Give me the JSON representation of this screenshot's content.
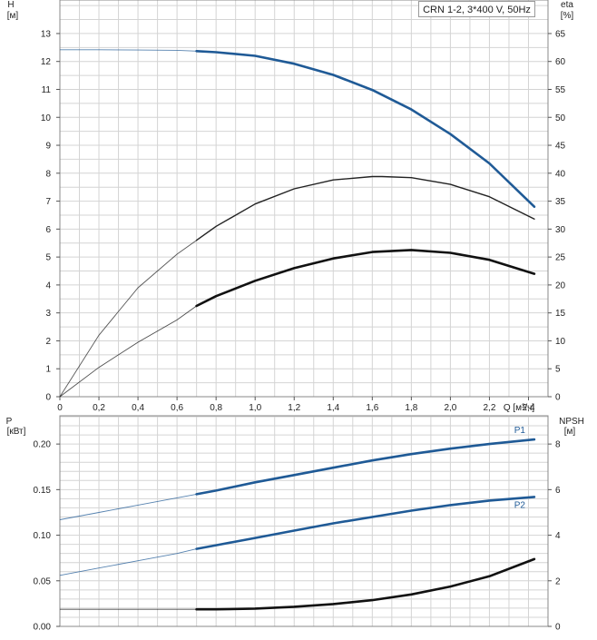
{
  "chart_data": [
    {
      "type": "line",
      "legend": "CRN 1-2, 3*400 V, 50Hz",
      "x_axis": {
        "label": "Q [м³/ч]",
        "range": [
          0,
          2.5
        ],
        "ticks": [
          "0",
          "0,2",
          "0,4",
          "0,6",
          "0,8",
          "1,0",
          "1,2",
          "1,4",
          "1,6",
          "1,8",
          "2,0",
          "2,2",
          "2,4"
        ]
      },
      "y_left": {
        "label_line1": "H",
        "label_line2": "[м]",
        "range": [
          0,
          14.2
        ],
        "ticks": [
          "0",
          "1",
          "2",
          "3",
          "4",
          "5",
          "6",
          "7",
          "8",
          "9",
          "10",
          "11",
          "12",
          "13"
        ]
      },
      "y_right": {
        "label_line1": "eta",
        "label_line2": "[%]",
        "range": [
          0,
          71
        ],
        "ticks": [
          "0",
          "5",
          "10",
          "15",
          "20",
          "25",
          "30",
          "35",
          "40",
          "45",
          "50",
          "55",
          "60",
          "65"
        ]
      },
      "grid": true,
      "series": [
        {
          "axis": "left",
          "color": "#1f5a96",
          "x": [
            0,
            0.2,
            0.4,
            0.6,
            0.7,
            0.8,
            1.0,
            1.2,
            1.4,
            1.6,
            1.8,
            2.0,
            2.2,
            2.43
          ],
          "y": [
            12.42,
            12.42,
            12.41,
            12.4,
            12.37,
            12.33,
            12.2,
            11.92,
            11.52,
            10.98,
            10.28,
            9.4,
            8.35,
            6.8
          ],
          "operating_from": 0.7
        },
        {
          "axis": "right",
          "color": "#222222",
          "x": [
            0,
            0.2,
            0.4,
            0.6,
            0.7,
            0.8,
            1.0,
            1.2,
            1.4,
            1.6,
            1.65,
            1.8,
            2.0,
            2.2,
            2.43
          ],
          "y": [
            0,
            11,
            19.5,
            25.5,
            28,
            30.5,
            34.5,
            37.2,
            38.8,
            39.4,
            39.4,
            39.2,
            38,
            35.8,
            31.8
          ],
          "operating_from": 0.7
        },
        {
          "axis": "left",
          "color": "#111111",
          "x": [
            0,
            0.2,
            0.4,
            0.6,
            0.7,
            0.8,
            1.0,
            1.2,
            1.4,
            1.6,
            1.8,
            2.0,
            2.2,
            2.43
          ],
          "y": [
            0,
            1.05,
            1.95,
            2.75,
            3.25,
            3.6,
            4.15,
            4.6,
            4.95,
            5.18,
            5.25,
            5.15,
            4.9,
            4.4
          ],
          "operating_from": 0.7
        }
      ]
    },
    {
      "type": "line",
      "x_axis": {
        "range": [
          0,
          2.5
        ]
      },
      "y_left": {
        "label_line1": "P",
        "label_line2": "[кВт]",
        "range": [
          0,
          0.231
        ],
        "ticks": [
          "0.00",
          "0.05",
          "0.10",
          "0.15",
          "0.20"
        ]
      },
      "y_right": {
        "label_line1": "NPSH",
        "label_line2": "[м]",
        "range": [
          0,
          9.24
        ],
        "ticks": [
          "0",
          "2",
          "4",
          "6",
          "8"
        ]
      },
      "grid": true,
      "series": [
        {
          "name": "P1",
          "axis": "left",
          "color": "#1f5a96",
          "x": [
            0,
            0.2,
            0.4,
            0.6,
            0.7,
            0.8,
            1.0,
            1.2,
            1.4,
            1.6,
            1.8,
            2.0,
            2.2,
            2.43
          ],
          "y": [
            0.117,
            0.125,
            0.133,
            0.141,
            0.145,
            0.149,
            0.158,
            0.166,
            0.174,
            0.182,
            0.189,
            0.195,
            0.2,
            0.205
          ],
          "operating_from": 0.7
        },
        {
          "name": "P2",
          "axis": "left",
          "color": "#1f5a96",
          "x": [
            0,
            0.2,
            0.4,
            0.6,
            0.7,
            0.8,
            1.0,
            1.2,
            1.4,
            1.6,
            1.8,
            2.0,
            2.2,
            2.43
          ],
          "y": [
            0.056,
            0.064,
            0.072,
            0.08,
            0.085,
            0.089,
            0.097,
            0.105,
            0.113,
            0.12,
            0.127,
            0.133,
            0.138,
            0.142
          ],
          "operating_from": 0.7
        },
        {
          "axis": "right",
          "color": "#111111",
          "x": [
            0,
            0.2,
            0.4,
            0.6,
            0.7,
            0.8,
            1.0,
            1.2,
            1.4,
            1.6,
            1.8,
            2.0,
            2.2,
            2.43
          ],
          "y": [
            0.75,
            0.75,
            0.75,
            0.75,
            0.75,
            0.75,
            0.78,
            0.86,
            0.98,
            1.15,
            1.4,
            1.75,
            2.2,
            2.95
          ],
          "operating_from": 0.7
        }
      ]
    }
  ]
}
